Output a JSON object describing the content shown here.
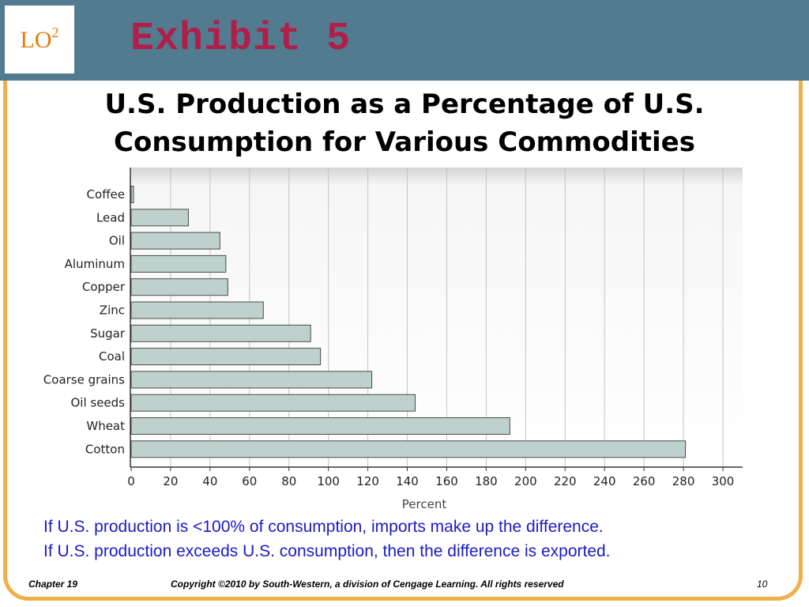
{
  "header": {
    "logo_text": "LO",
    "logo_superscript": "2",
    "exhibit_title": "Exhibit 5"
  },
  "colors": {
    "header_bg": "#527b8f",
    "frame": "#efb04a",
    "bar_fill": "#bfd1cc",
    "title_accent": "#b01e4a",
    "note_text": "#1a1ac8"
  },
  "chart_data": {
    "type": "bar",
    "orientation": "horizontal",
    "title": "U.S. Production as a Percentage of U.S. Consumption for Various Commodities",
    "categories": [
      "Coffee",
      "Lead",
      "Oil",
      "Aluminum",
      "Copper",
      "Zinc",
      "Sugar",
      "Coal",
      "Coarse grains",
      "Oil seeds",
      "Wheat",
      "Cotton"
    ],
    "values": [
      1,
      29,
      45,
      48,
      49,
      67,
      91,
      96,
      122,
      144,
      192,
      281
    ],
    "xlabel": "Percent",
    "ylabel": "",
    "xlim": [
      0,
      310
    ],
    "xticks": [
      0,
      20,
      40,
      60,
      80,
      100,
      120,
      140,
      160,
      180,
      200,
      220,
      240,
      260,
      280,
      300
    ],
    "grid": "vertical"
  },
  "notes": [
    "If U.S. production is <100% of consumption, imports make up the difference.",
    "If U.S. production exceeds U.S. consumption, then the difference is exported."
  ],
  "footer": {
    "chapter": "Chapter 19",
    "copyright": "Copyright ©2010 by South-Western, a division of Cengage Learning.  All rights reserved",
    "page": "10"
  }
}
